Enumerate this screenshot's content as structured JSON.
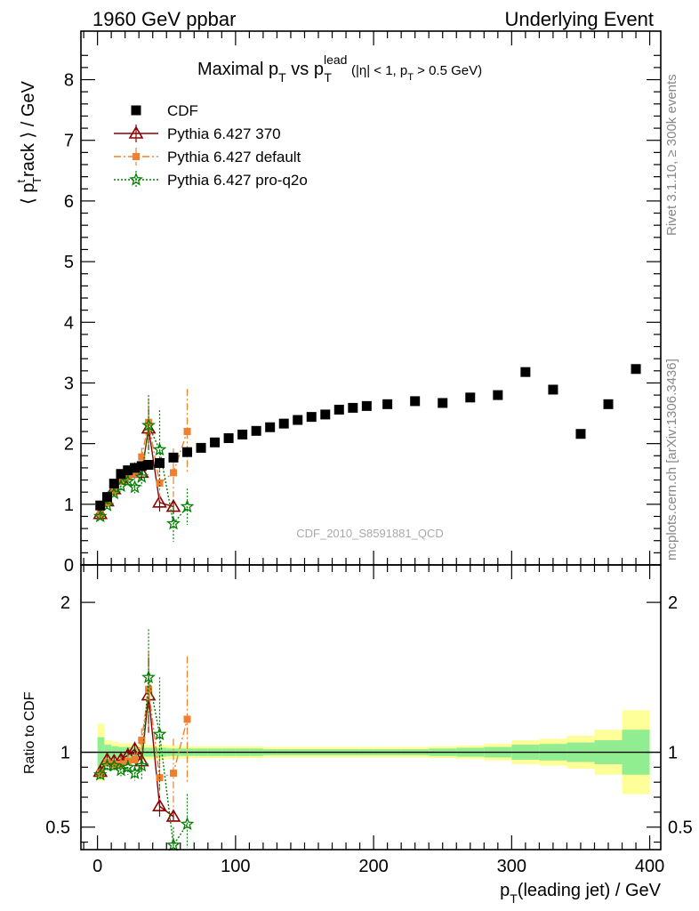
{
  "header": {
    "left": "1960 GeV ppbar",
    "right": "Underlying Event"
  },
  "side_text": {
    "top": "Rivet 3.1.10, ≥ 300k events",
    "bottom": "mcplots.cern.ch [arXiv:1306.3436]"
  },
  "colors": {
    "cdf": "#000000",
    "p370": "#8b0000",
    "pdefault": "#f08030",
    "pq2o": "#008000",
    "band_outer": "#ffff99",
    "band_inner": "#90ee90"
  },
  "chart_data": [
    {
      "type": "scatter",
      "title": "Maximal p_T vs p_T^lead (|η| < 1, p_T > 0.5 GeV)",
      "title_parts": {
        "main": "Maximal p",
        "sub1": "T",
        "vs": " vs p",
        "sup": "lead",
        "sub2": "T",
        "cut1": "(|η| < 1, p",
        "cut_sub": "T",
        "cut2": " > 0.5 GeV)"
      },
      "ylabel": "⟨ p_T^track ⟩ / GeV",
      "ylabel_parts": {
        "open": "⟨ p",
        "sup": "t",
        "sub": "T",
        "rest": "rack ⟩ / GeV"
      },
      "watermark": "CDF_2010_S8591881_QCD",
      "xlim": [
        -12,
        408
      ],
      "ylim": [
        0,
        8.8
      ],
      "yticks": [
        0,
        1,
        2,
        3,
        4,
        5,
        6,
        7,
        8
      ],
      "legend_placement": "top-left",
      "series": [
        {
          "name": "CDF",
          "marker": "square",
          "x": [
            2,
            7,
            12,
            17,
            22,
            27,
            32,
            37,
            45,
            55,
            65,
            75,
            85,
            95,
            105,
            115,
            125,
            135,
            145,
            155,
            165,
            175,
            185,
            195,
            210,
            230,
            250,
            270,
            290,
            310,
            330,
            350,
            370,
            390
          ],
          "y": [
            0.98,
            1.12,
            1.34,
            1.5,
            1.56,
            1.6,
            1.63,
            1.65,
            1.68,
            1.77,
            1.86,
            1.93,
            2.02,
            2.09,
            2.15,
            2.21,
            2.27,
            2.33,
            2.39,
            2.44,
            2.48,
            2.56,
            2.59,
            2.62,
            2.65,
            2.7,
            2.67,
            2.76,
            2.8,
            3.18,
            2.89,
            2.16,
            2.65,
            3.23
          ]
        },
        {
          "name": "Pythia 6.427 370",
          "marker": "triangle",
          "x": [
            2,
            7,
            12,
            17,
            22,
            27,
            32,
            37,
            45,
            55
          ],
          "y": [
            0.84,
            1.05,
            1.25,
            1.43,
            1.52,
            1.57,
            1.52,
            2.25,
            1.03,
            0.96
          ],
          "yerr": [
            0.05,
            0.05,
            0.06,
            0.07,
            0.08,
            0.1,
            0.12,
            0.35,
            0.15,
            0.12
          ]
        },
        {
          "name": "Pythia 6.427 default",
          "marker": "square-small",
          "x": [
            2,
            7,
            12,
            17,
            22,
            27,
            32,
            37,
            45,
            55,
            65
          ],
          "y": [
            0.83,
            1.02,
            1.2,
            1.38,
            1.45,
            1.5,
            1.78,
            2.35,
            1.35,
            1.52,
            2.2
          ],
          "yerr": [
            0.05,
            0.05,
            0.06,
            0.07,
            0.08,
            0.1,
            0.15,
            0.4,
            0.3,
            0.4,
            0.7
          ]
        },
        {
          "name": "Pythia 6.427 pro-q2o",
          "marker": "star",
          "x": [
            2,
            7,
            12,
            17,
            22,
            27,
            32,
            37,
            45,
            55,
            65
          ],
          "y": [
            0.8,
            0.98,
            1.18,
            1.3,
            1.38,
            1.28,
            1.45,
            2.3,
            1.9,
            0.68,
            0.96
          ],
          "yerr": [
            0.05,
            0.05,
            0.06,
            0.07,
            0.08,
            0.1,
            0.15,
            0.5,
            0.65,
            0.3,
            0.3
          ]
        }
      ]
    },
    {
      "type": "scatter",
      "ylabel": "Ratio to CDF",
      "xlabel": "p_T(leading jet) / GeV",
      "xlabel_parts": {
        "p": "p",
        "sub": "T",
        "rest": "(leading jet) / GeV"
      },
      "xlim": [
        -12,
        408
      ],
      "ylim": [
        0.35,
        2.25
      ],
      "xticks": [
        0,
        100,
        200,
        300,
        400
      ],
      "yticks": [
        0.5,
        1,
        2
      ],
      "band_edges": [
        0,
        5,
        10,
        15,
        20,
        25,
        30,
        35,
        40,
        50,
        60,
        70,
        80,
        90,
        100,
        110,
        120,
        130,
        140,
        150,
        160,
        170,
        180,
        190,
        200,
        220,
        240,
        260,
        280,
        300,
        320,
        340,
        360,
        380,
        400
      ],
      "band_outer": [
        0.19,
        0.08,
        0.07,
        0.06,
        0.06,
        0.05,
        0.05,
        0.05,
        0.05,
        0.045,
        0.04,
        0.04,
        0.04,
        0.04,
        0.04,
        0.04,
        0.035,
        0.035,
        0.035,
        0.035,
        0.035,
        0.035,
        0.035,
        0.035,
        0.035,
        0.035,
        0.04,
        0.045,
        0.055,
        0.08,
        0.09,
        0.11,
        0.15,
        0.28
      ],
      "band_inner": [
        0.1,
        0.05,
        0.04,
        0.035,
        0.035,
        0.03,
        0.03,
        0.03,
        0.03,
        0.025,
        0.025,
        0.025,
        0.025,
        0.025,
        0.025,
        0.025,
        0.02,
        0.02,
        0.02,
        0.02,
        0.02,
        0.02,
        0.02,
        0.02,
        0.02,
        0.02,
        0.025,
        0.03,
        0.035,
        0.05,
        0.055,
        0.065,
        0.08,
        0.15
      ],
      "series": [
        {
          "name": "Pythia 6.427 370",
          "x": [
            2,
            7,
            12,
            17,
            22,
            27,
            32,
            37,
            45,
            55
          ],
          "y": [
            0.87,
            0.95,
            0.94,
            0.95,
            0.98,
            1.02,
            0.94,
            1.38,
            0.64,
            0.57
          ],
          "yerr": [
            0.03,
            0.03,
            0.03,
            0.04,
            0.05,
            0.05,
            0.06,
            0.25,
            0.07,
            0.03
          ]
        },
        {
          "name": "Pythia 6.427 default",
          "x": [
            2,
            7,
            12,
            17,
            22,
            27,
            32,
            37,
            45,
            55,
            65
          ],
          "y": [
            0.86,
            0.93,
            0.92,
            0.92,
            0.94,
            0.95,
            1.08,
            1.42,
            0.83,
            0.86,
            1.22
          ],
          "yerr": [
            0.03,
            0.03,
            0.03,
            0.04,
            0.05,
            0.05,
            0.08,
            0.25,
            0.15,
            0.23,
            0.42
          ]
        },
        {
          "name": "Pythia 6.427 pro-q2o",
          "x": [
            2,
            7,
            12,
            17,
            22,
            27,
            32,
            37,
            45,
            55,
            65
          ],
          "y": [
            0.85,
            0.91,
            0.91,
            0.88,
            0.9,
            0.86,
            0.91,
            1.5,
            1.12,
            0.38,
            0.52
          ],
          "yerr": [
            0.03,
            0.03,
            0.03,
            0.04,
            0.05,
            0.05,
            0.09,
            0.32,
            0.38,
            0.12,
            0.2
          ]
        }
      ]
    }
  ]
}
